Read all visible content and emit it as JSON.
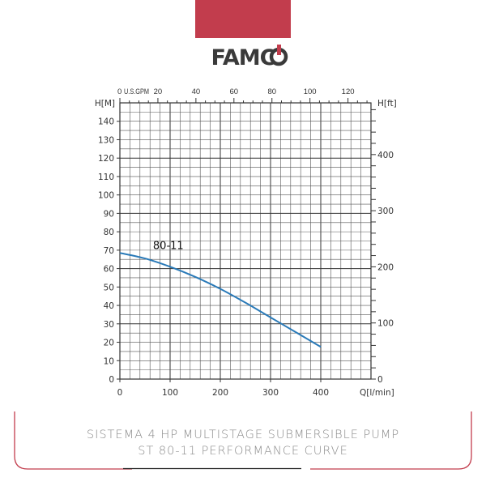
{
  "brand": {
    "logo_text": "FAMCO",
    "color": "#c23d4d"
  },
  "caption": {
    "line1": "SISTEMA 4 HP MULTISTAGE SUBMERSIBLE PUMP",
    "line2": "ST 80-11 PERFORMANCE CURVE"
  },
  "chart_data": {
    "type": "line",
    "xlabel": "Q[l/min]",
    "ylabel": "H[M]",
    "y2label": "H[ft]",
    "x2label": "U.S.GPM",
    "xlim": [
      0,
      500
    ],
    "ylim": [
      0,
      150
    ],
    "x_ticks": [
      0,
      100,
      200,
      300,
      400
    ],
    "y_ticks": [
      0,
      10,
      20,
      30,
      40,
      50,
      60,
      70,
      80,
      90,
      100,
      110,
      120,
      130,
      140
    ],
    "y2_ticks": [
      0,
      100,
      200,
      300,
      400
    ],
    "x2_ticks": [
      0,
      20,
      40,
      60,
      80,
      100,
      120
    ],
    "grid": true,
    "series": [
      {
        "name": "80-11",
        "color": "#2a7ab8",
        "x": [
          0,
          50,
          100,
          150,
          200,
          250,
          300,
          350,
          400
        ],
        "y": [
          68.5,
          65.5,
          61,
          55.5,
          49,
          41.5,
          33.5,
          25.5,
          17.5
        ]
      }
    ]
  }
}
